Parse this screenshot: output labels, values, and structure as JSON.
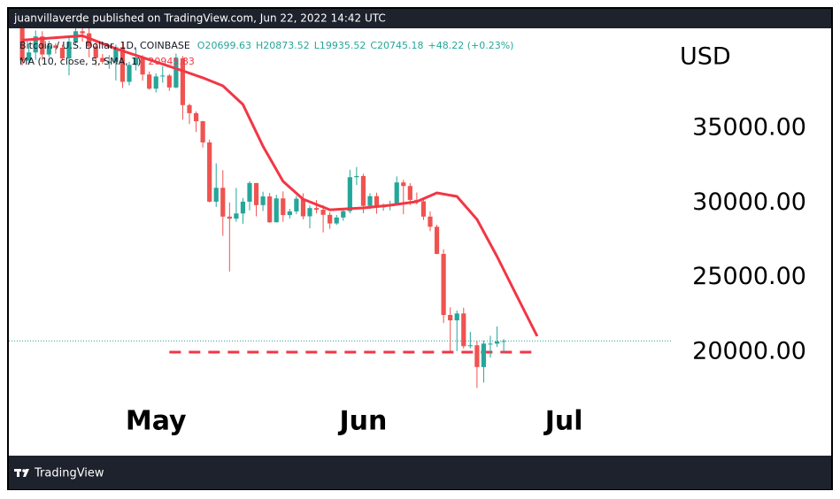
{
  "header": "juanvillaverde published on TradingView.com, Jun 22, 2022 14:42 UTC",
  "footer": "TradingView",
  "chart_data": {
    "type": "candlestick",
    "symbol": "Bitcoin / U.S. Dollar, 1D, COINBASE",
    "ohlc_text": [
      "O20699.63",
      "H20873.52",
      "L19935.52",
      "C20745.18",
      "+48.22 (+0.23%)"
    ],
    "currency": "USD",
    "up_color": "#26a69a",
    "down_color": "#ef5350",
    "x": [
      "2022-04-11",
      "2022-04-12",
      "2022-04-13",
      "2022-04-14",
      "2022-04-15",
      "2022-04-16",
      "2022-04-17",
      "2022-04-18",
      "2022-04-19",
      "2022-04-20",
      "2022-04-21",
      "2022-04-22",
      "2022-04-23",
      "2022-04-24",
      "2022-04-25",
      "2022-04-26",
      "2022-04-27",
      "2022-04-28",
      "2022-04-29",
      "2022-04-30",
      "2022-05-01",
      "2022-05-02",
      "2022-05-03",
      "2022-05-04",
      "2022-05-05",
      "2022-05-06",
      "2022-05-07",
      "2022-05-08",
      "2022-05-09",
      "2022-05-10",
      "2022-05-11",
      "2022-05-12",
      "2022-05-13",
      "2022-05-14",
      "2022-05-15",
      "2022-05-16",
      "2022-05-17",
      "2022-05-18",
      "2022-05-19",
      "2022-05-20",
      "2022-05-21",
      "2022-05-22",
      "2022-05-23",
      "2022-05-24",
      "2022-05-25",
      "2022-05-26",
      "2022-05-27",
      "2022-05-28",
      "2022-05-29",
      "2022-05-30",
      "2022-05-31",
      "2022-06-01",
      "2022-06-02",
      "2022-06-03",
      "2022-06-04",
      "2022-06-05",
      "2022-06-06",
      "2022-06-07",
      "2022-06-08",
      "2022-06-09",
      "2022-06-10",
      "2022-06-11",
      "2022-06-12",
      "2022-06-13",
      "2022-06-14",
      "2022-06-15",
      "2022-06-16",
      "2022-06-17",
      "2022-06-18",
      "2022-06-19",
      "2022-06-20",
      "2022-06-21",
      "2022-06-22"
    ],
    "open": [
      42150,
      39530,
      40080,
      41150,
      39940,
      40550,
      40390,
      39680,
      40800,
      41500,
      41360,
      40480,
      39710,
      39450,
      39450,
      40430,
      38110,
      39240,
      39740,
      38600,
      37650,
      38470,
      38530,
      37730,
      39690,
      36550,
      36010,
      35470,
      34050,
      30080,
      31010,
      29080,
      28940,
      29290,
      30080,
      31330,
      29850,
      30430,
      28700,
      30300,
      29180,
      29430,
      30280,
      29100,
      29650,
      29540,
      29200,
      28620,
      29020,
      29450,
      31720,
      31800,
      29800,
      30450,
      29700,
      29860,
      29910,
      31370,
      31130,
      30200,
      30110,
      29080,
      28400,
      26580,
      22490,
      22130,
      22590,
      20400,
      20460,
      19000,
      20570,
      20570,
      20699.63
    ],
    "high": [
      42400,
      40700,
      41550,
      41500,
      40860,
      40700,
      40600,
      41120,
      41760,
      42200,
      42980,
      40800,
      39980,
      39900,
      40600,
      40800,
      39460,
      40370,
      39900,
      38800,
      38680,
      39150,
      38640,
      40000,
      39840,
      36640,
      36130,
      35500,
      34240,
      32650,
      32190,
      30030,
      31000,
      30330,
      31450,
      31330,
      30750,
      30660,
      30540,
      30770,
      29600,
      30470,
      30640,
      29820,
      30190,
      29850,
      29380,
      29190,
      29570,
      32220,
      32400,
      31950,
      30650,
      30680,
      29950,
      30150,
      31770,
      31550,
      31320,
      30700,
      30330,
      29430,
      28540,
      26890,
      23000,
      22790,
      22980,
      21360,
      20760,
      20780,
      21100,
      21720,
      20873.52
    ],
    "low": [
      39200,
      39250,
      39580,
      39550,
      39770,
      40000,
      39540,
      38540,
      40570,
      40800,
      39750,
      39180,
      39300,
      38980,
      38200,
      37700,
      37870,
      38880,
      38180,
      37580,
      37390,
      38050,
      37500,
      37680,
      35580,
      35280,
      34750,
      33710,
      30030,
      29730,
      27790,
      25400,
      28730,
      28600,
      29500,
      29100,
      29460,
      28660,
      28690,
      28730,
      28950,
      29250,
      28900,
      28300,
      29300,
      28020,
      28260,
      28520,
      28800,
      29300,
      31200,
      29310,
      29580,
      29270,
      29470,
      29500,
      29880,
      29240,
      29850,
      29900,
      28850,
      28100,
      26560,
      21950,
      20080,
      20070,
      20240,
      20260,
      17600,
      17960,
      19640,
      20350,
      19935.52
    ],
    "close": [
      39530,
      40080,
      41150,
      39940,
      40550,
      40390,
      39680,
      40800,
      41500,
      41360,
      40480,
      39710,
      39450,
      39450,
      40430,
      38110,
      39240,
      39740,
      38600,
      37650,
      38470,
      38530,
      37730,
      39690,
      36550,
      36010,
      35470,
      34050,
      30080,
      31010,
      29080,
      28940,
      29290,
      30080,
      31330,
      29850,
      30430,
      28700,
      30300,
      29180,
      29430,
      30280,
      29100,
      29650,
      29540,
      29200,
      28620,
      29020,
      29450,
      31720,
      31800,
      29800,
      30450,
      29700,
      29860,
      29910,
      31370,
      31130,
      30200,
      30110,
      29080,
      28400,
      26580,
      22490,
      22130,
      22590,
      20400,
      20460,
      19000,
      20570,
      20570,
      20710,
      20745.18
    ],
    "ma": {
      "name": "MA (10, close, 5, SMA, 1)",
      "value_text": "20945.83",
      "color": "#f23645",
      "x": [
        "2022-04-11",
        "2022-04-20",
        "2022-04-25",
        "2022-05-01",
        "2022-05-05",
        "2022-05-08",
        "2022-05-11",
        "2022-05-14",
        "2022-05-17",
        "2022-05-20",
        "2022-05-23",
        "2022-05-27",
        "2022-06-01",
        "2022-06-05",
        "2022-06-09",
        "2022-06-12",
        "2022-06-15",
        "2022-06-18",
        "2022-06-21",
        "2022-06-24",
        "2022-06-27"
      ],
      "values": [
        40900,
        41200,
        40330,
        39450,
        38850,
        38380,
        37840,
        36600,
        33800,
        31440,
        30250,
        29540,
        29660,
        29840,
        30080,
        30670,
        30430,
        28890,
        26400,
        23730,
        21070
      ]
    },
    "hline": {
      "value": 20000,
      "from": "2022-05-03",
      "to": "2022-06-27",
      "color": "#f23645"
    },
    "xlim": [
      "2022-04-09",
      "2022-07-17"
    ],
    "xticks": [
      {
        "value": "2022-05-01",
        "label": "May"
      },
      {
        "value": "2022-06-01",
        "label": "Jun"
      },
      {
        "value": "2022-07-01",
        "label": "Jul"
      }
    ],
    "ylim": [
      13065,
      41695
    ],
    "yticks": [
      {
        "value": 20000,
        "label": "20000.00"
      },
      {
        "value": 25000,
        "label": "25000.00"
      },
      {
        "value": 30000,
        "label": "30000.00"
      },
      {
        "value": 35000,
        "label": "35000.00"
      }
    ],
    "grid": false
  }
}
